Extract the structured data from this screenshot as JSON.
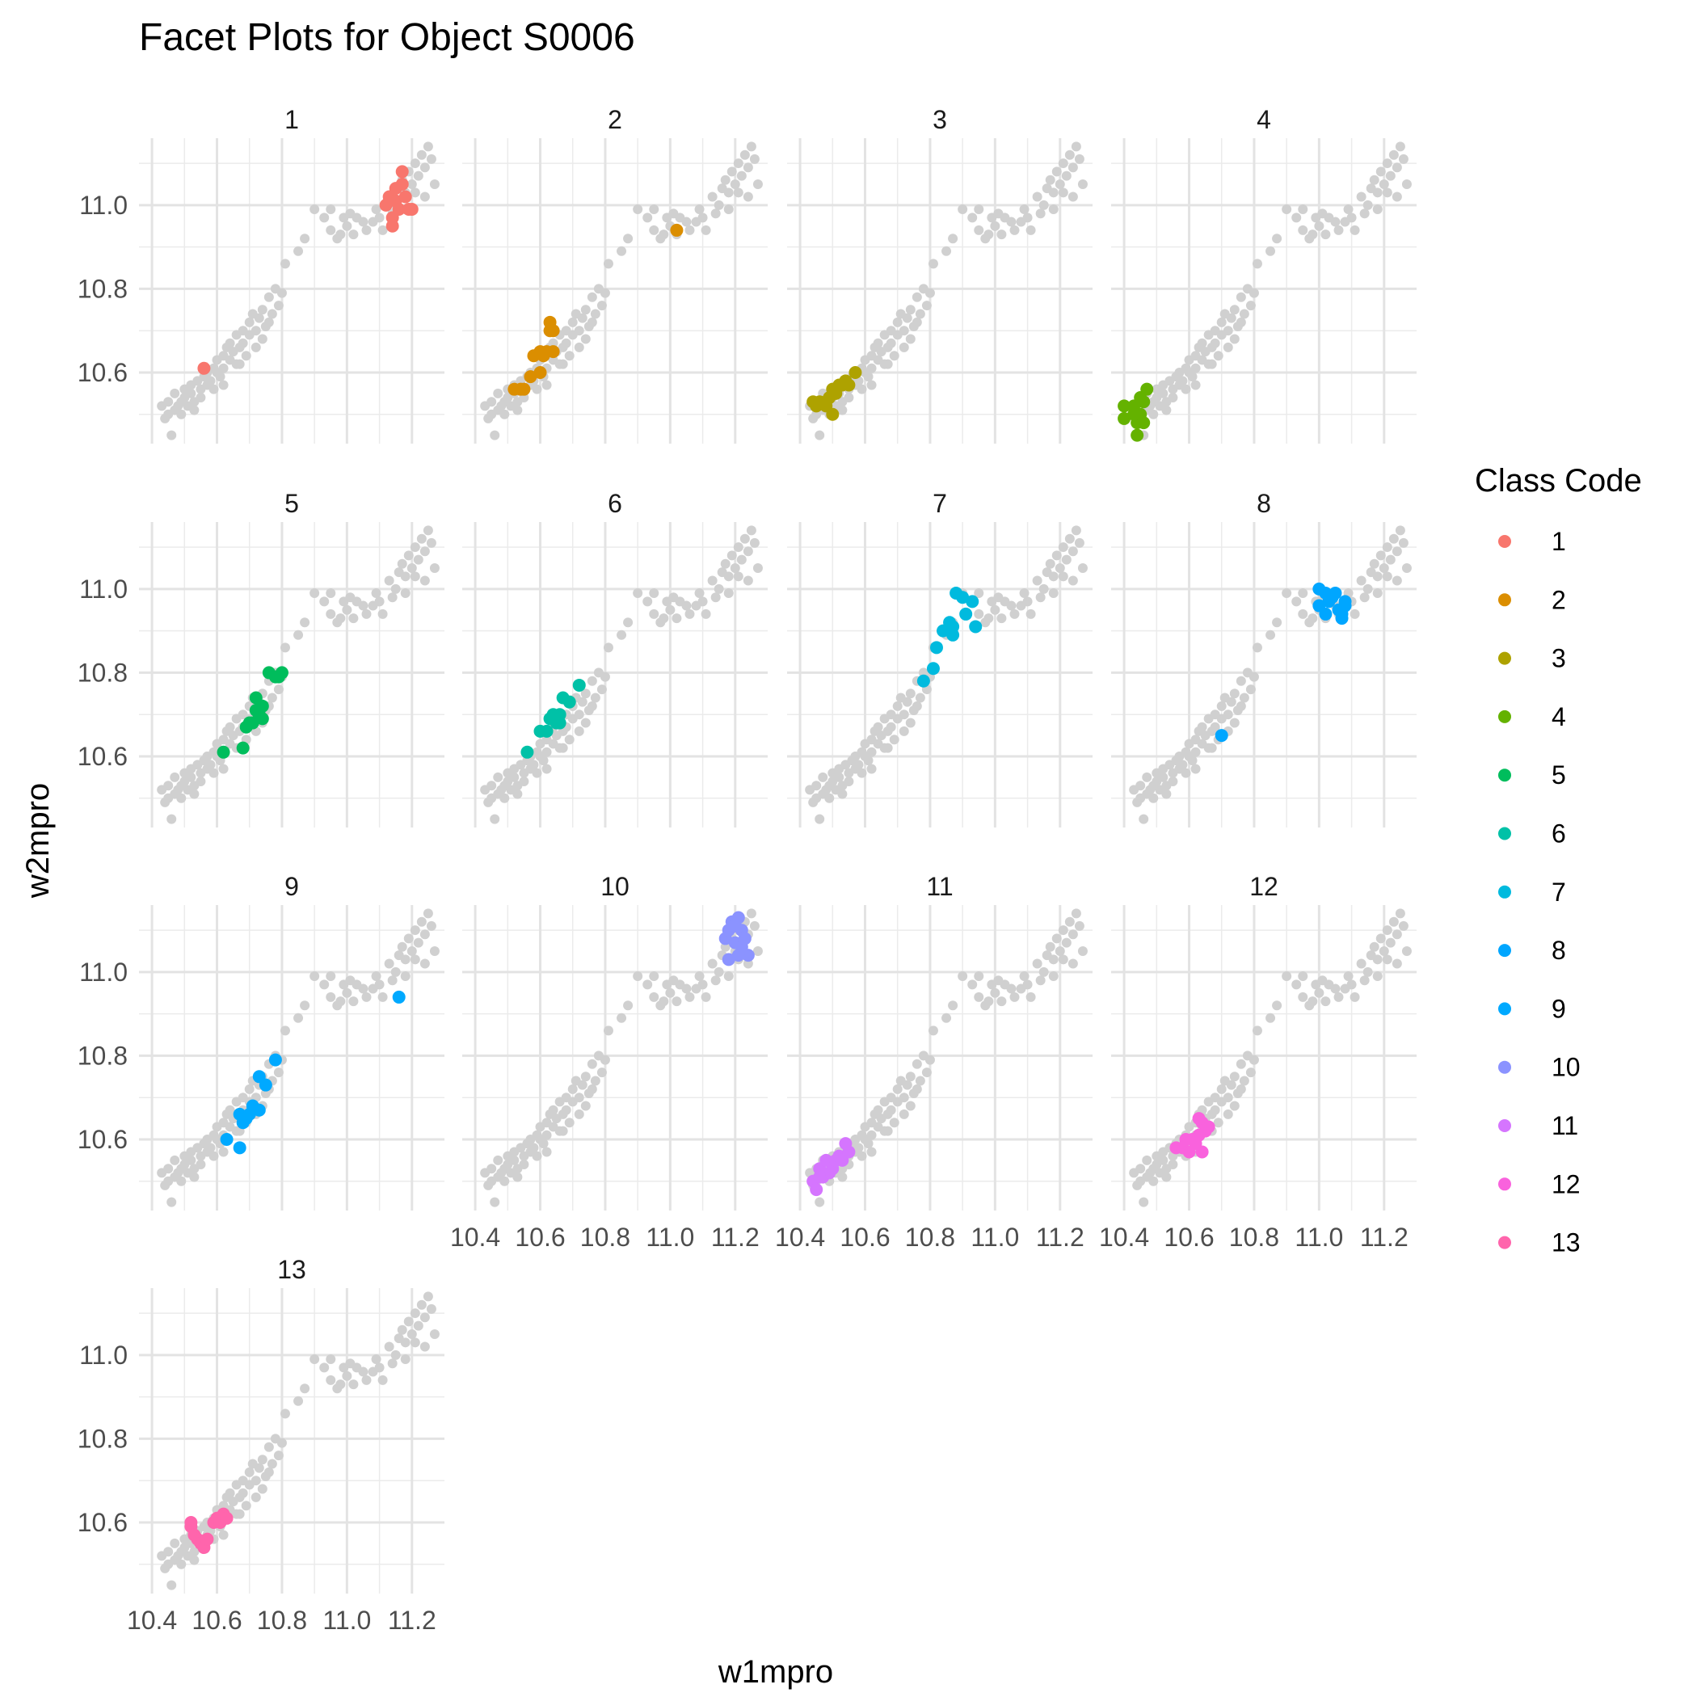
{
  "chart_data": {
    "type": "scatter",
    "title": "Facet Plots for Object S0006",
    "xlabel": "w1mpro",
    "ylabel": "w2mpro",
    "xlim": [
      10.36,
      11.3
    ],
    "ylim": [
      10.43,
      11.16
    ],
    "x_ticks": [
      "10.4",
      "10.6",
      "10.8",
      "11.0",
      "11.2"
    ],
    "x_tick_values": [
      10.4,
      10.6,
      10.8,
      11.0,
      11.2
    ],
    "y_ticks": [
      "10.6",
      "10.8",
      "11.0"
    ],
    "y_tick_values": [
      10.6,
      10.8,
      11.0
    ],
    "grid": true,
    "background_color": "#d0d0d0",
    "legend": {
      "title": "Class Code",
      "placement": "right",
      "entries": [
        "1",
        "2",
        "3",
        "4",
        "5",
        "6",
        "7",
        "8",
        "9",
        "10",
        "11",
        "12",
        "13"
      ]
    },
    "facets": [
      {
        "label": "1",
        "color": "#F8766D",
        "points": [
          [
            10.56,
            10.61
          ],
          [
            11.12,
            11.0
          ],
          [
            11.13,
            11.02
          ],
          [
            11.14,
            10.95
          ],
          [
            11.14,
            10.97
          ],
          [
            11.15,
            11.01
          ],
          [
            11.15,
            11.04
          ],
          [
            11.16,
            10.99
          ],
          [
            11.17,
            11.05
          ],
          [
            11.17,
            11.08
          ],
          [
            11.18,
            11.02
          ],
          [
            11.19,
            10.99
          ],
          [
            11.2,
            10.99
          ],
          [
            11.13,
            11.01
          ]
        ]
      },
      {
        "label": "2",
        "color": "#DB8E00",
        "points": [
          [
            10.52,
            10.56
          ],
          [
            10.54,
            10.56
          ],
          [
            10.55,
            10.56
          ],
          [
            10.57,
            10.59
          ],
          [
            10.58,
            10.64
          ],
          [
            10.6,
            10.6
          ],
          [
            10.6,
            10.65
          ],
          [
            10.61,
            10.64
          ],
          [
            10.62,
            10.65
          ],
          [
            10.63,
            10.7
          ],
          [
            10.63,
            10.72
          ],
          [
            10.64,
            10.65
          ],
          [
            10.64,
            10.7
          ],
          [
            11.02,
            10.94
          ]
        ]
      },
      {
        "label": "3",
        "color": "#AEA200",
        "points": [
          [
            10.44,
            10.53
          ],
          [
            10.45,
            10.52
          ],
          [
            10.46,
            10.53
          ],
          [
            10.48,
            10.52
          ],
          [
            10.49,
            10.54
          ],
          [
            10.5,
            10.5
          ],
          [
            10.51,
            10.55
          ],
          [
            10.52,
            10.57
          ],
          [
            10.53,
            10.57
          ],
          [
            10.54,
            10.58
          ],
          [
            10.55,
            10.57
          ],
          [
            10.57,
            10.6
          ],
          [
            10.5,
            10.56
          ]
        ]
      },
      {
        "label": "4",
        "color": "#64B200",
        "points": [
          [
            10.4,
            10.52
          ],
          [
            10.4,
            10.49
          ],
          [
            10.43,
            10.52
          ],
          [
            10.44,
            10.45
          ],
          [
            10.44,
            10.48
          ],
          [
            10.45,
            10.5
          ],
          [
            10.45,
            10.54
          ],
          [
            10.46,
            10.53
          ],
          [
            10.47,
            10.56
          ],
          [
            10.46,
            10.48
          ],
          [
            10.43,
            10.5
          ]
        ]
      },
      {
        "label": "5",
        "color": "#00BD5C",
        "points": [
          [
            10.62,
            10.61
          ],
          [
            10.68,
            10.62
          ],
          [
            10.69,
            10.67
          ],
          [
            10.7,
            10.68
          ],
          [
            10.71,
            10.68
          ],
          [
            10.72,
            10.74
          ],
          [
            10.72,
            10.71
          ],
          [
            10.73,
            10.7
          ],
          [
            10.74,
            10.72
          ],
          [
            10.74,
            10.69
          ],
          [
            10.76,
            10.8
          ],
          [
            10.78,
            10.79
          ],
          [
            10.79,
            10.79
          ],
          [
            10.8,
            10.8
          ]
        ]
      },
      {
        "label": "6",
        "color": "#00C1A7",
        "points": [
          [
            10.56,
            10.61
          ],
          [
            10.6,
            10.66
          ],
          [
            10.62,
            10.66
          ],
          [
            10.63,
            10.69
          ],
          [
            10.64,
            10.7
          ],
          [
            10.65,
            10.68
          ],
          [
            10.66,
            10.7
          ],
          [
            10.66,
            10.68
          ],
          [
            10.67,
            10.74
          ],
          [
            10.69,
            10.73
          ],
          [
            10.72,
            10.77
          ],
          [
            10.64,
            10.69
          ]
        ]
      },
      {
        "label": "7",
        "color": "#00BADE",
        "points": [
          [
            10.78,
            10.78
          ],
          [
            10.81,
            10.81
          ],
          [
            10.82,
            10.86
          ],
          [
            10.84,
            10.9
          ],
          [
            10.86,
            10.92
          ],
          [
            10.87,
            10.89
          ],
          [
            10.87,
            10.91
          ],
          [
            10.88,
            10.99
          ],
          [
            10.9,
            10.98
          ],
          [
            10.91,
            10.94
          ],
          [
            10.93,
            10.97
          ],
          [
            10.94,
            10.91
          ]
        ]
      },
      {
        "label": "8",
        "color": "#00A6FF",
        "points": [
          [
            10.7,
            10.65
          ],
          [
            11.0,
            11.0
          ],
          [
            11.0,
            10.96
          ],
          [
            11.02,
            10.94
          ],
          [
            11.03,
            10.97
          ],
          [
            11.04,
            10.98
          ],
          [
            11.05,
            10.99
          ],
          [
            11.06,
            10.95
          ],
          [
            11.07,
            10.94
          ],
          [
            11.08,
            10.96
          ],
          [
            11.08,
            10.97
          ],
          [
            11.07,
            10.93
          ],
          [
            11.02,
            10.99
          ]
        ]
      },
      {
        "label": "9",
        "color": "#00A9FF",
        "points": [
          [
            10.63,
            10.6
          ],
          [
            10.67,
            10.58
          ],
          [
            10.67,
            10.66
          ],
          [
            10.68,
            10.64
          ],
          [
            10.69,
            10.65
          ],
          [
            10.71,
            10.68
          ],
          [
            10.73,
            10.67
          ],
          [
            10.73,
            10.75
          ],
          [
            10.75,
            10.73
          ],
          [
            10.78,
            10.79
          ],
          [
            11.16,
            10.94
          ],
          [
            10.7,
            10.66
          ]
        ]
      },
      {
        "label": "10",
        "color": "#8B93FF",
        "points": [
          [
            11.17,
            11.08
          ],
          [
            11.18,
            11.1
          ],
          [
            11.18,
            11.03
          ],
          [
            11.19,
            11.12
          ],
          [
            11.2,
            11.07
          ],
          [
            11.21,
            11.13
          ],
          [
            11.22,
            11.1
          ],
          [
            11.22,
            11.06
          ],
          [
            11.23,
            11.08
          ],
          [
            11.24,
            11.04
          ],
          [
            11.21,
            11.04
          ],
          [
            11.2,
            11.11
          ]
        ]
      },
      {
        "label": "11",
        "color": "#D575FE",
        "points": [
          [
            10.44,
            10.5
          ],
          [
            10.45,
            10.48
          ],
          [
            10.46,
            10.53
          ],
          [
            10.47,
            10.51
          ],
          [
            10.48,
            10.55
          ],
          [
            10.49,
            10.52
          ],
          [
            10.5,
            10.53
          ],
          [
            10.51,
            10.55
          ],
          [
            10.52,
            10.56
          ],
          [
            10.53,
            10.55
          ],
          [
            10.54,
            10.59
          ],
          [
            10.55,
            10.57
          ],
          [
            10.46,
            10.51
          ]
        ]
      },
      {
        "label": "12",
        "color": "#F962DD",
        "points": [
          [
            10.56,
            10.58
          ],
          [
            10.58,
            10.58
          ],
          [
            10.59,
            10.6
          ],
          [
            10.6,
            10.57
          ],
          [
            10.61,
            10.6
          ],
          [
            10.62,
            10.59
          ],
          [
            10.63,
            10.61
          ],
          [
            10.64,
            10.64
          ],
          [
            10.65,
            10.62
          ],
          [
            10.66,
            10.63
          ],
          [
            10.64,
            10.57
          ],
          [
            10.63,
            10.65
          ]
        ]
      },
      {
        "label": "13",
        "color": "#FF65AC",
        "points": [
          [
            10.52,
            10.59
          ],
          [
            10.53,
            10.57
          ],
          [
            10.54,
            10.56
          ],
          [
            10.55,
            10.55
          ],
          [
            10.56,
            10.54
          ],
          [
            10.57,
            10.56
          ],
          [
            10.59,
            10.6
          ],
          [
            10.6,
            10.61
          ],
          [
            10.61,
            10.6
          ],
          [
            10.62,
            10.62
          ],
          [
            10.63,
            10.61
          ],
          [
            10.52,
            10.6
          ]
        ]
      }
    ],
    "background_points": [
      [
        10.43,
        10.52
      ],
      [
        10.44,
        10.49
      ],
      [
        10.45,
        10.5
      ],
      [
        10.45,
        10.53
      ],
      [
        10.46,
        10.45
      ],
      [
        10.47,
        10.51
      ],
      [
        10.47,
        10.55
      ],
      [
        10.48,
        10.52
      ],
      [
        10.49,
        10.5
      ],
      [
        10.49,
        10.53
      ],
      [
        10.5,
        10.56
      ],
      [
        10.5,
        10.54
      ],
      [
        10.51,
        10.52
      ],
      [
        10.52,
        10.55
      ],
      [
        10.52,
        10.57
      ],
      [
        10.53,
        10.53
      ],
      [
        10.54,
        10.58
      ],
      [
        10.55,
        10.56
      ],
      [
        10.55,
        10.54
      ],
      [
        10.56,
        10.59
      ],
      [
        10.57,
        10.57
      ],
      [
        10.57,
        10.6
      ],
      [
        10.58,
        10.58
      ],
      [
        10.59,
        10.61
      ],
      [
        10.6,
        10.6
      ],
      [
        10.6,
        10.63
      ],
      [
        10.61,
        10.59
      ],
      [
        10.62,
        10.64
      ],
      [
        10.62,
        10.61
      ],
      [
        10.63,
        10.66
      ],
      [
        10.64,
        10.63
      ],
      [
        10.64,
        10.67
      ],
      [
        10.65,
        10.65
      ],
      [
        10.66,
        10.62
      ],
      [
        10.66,
        10.69
      ],
      [
        10.67,
        10.66
      ],
      [
        10.68,
        10.7
      ],
      [
        10.68,
        10.67
      ],
      [
        10.69,
        10.64
      ],
      [
        10.7,
        10.72
      ],
      [
        10.7,
        10.69
      ],
      [
        10.71,
        10.74
      ],
      [
        10.72,
        10.7
      ],
      [
        10.73,
        10.73
      ],
      [
        10.74,
        10.68
      ],
      [
        10.74,
        10.75
      ],
      [
        10.75,
        10.71
      ],
      [
        10.76,
        10.78
      ],
      [
        10.77,
        10.74
      ],
      [
        10.78,
        10.8
      ],
      [
        10.79,
        10.76
      ],
      [
        10.8,
        10.79
      ],
      [
        10.81,
        10.86
      ],
      [
        10.85,
        10.89
      ],
      [
        10.87,
        10.92
      ],
      [
        10.9,
        10.99
      ],
      [
        10.93,
        10.97
      ],
      [
        10.95,
        10.94
      ],
      [
        10.97,
        10.92
      ],
      [
        10.99,
        10.97
      ],
      [
        11.0,
        10.95
      ],
      [
        11.01,
        10.98
      ],
      [
        11.02,
        10.93
      ],
      [
        11.03,
        10.97
      ],
      [
        11.05,
        10.96
      ],
      [
        11.06,
        10.94
      ],
      [
        11.08,
        10.96
      ],
      [
        11.09,
        10.99
      ],
      [
        11.1,
        10.97
      ],
      [
        11.11,
        10.94
      ],
      [
        11.13,
        11.02
      ],
      [
        11.14,
        10.98
      ],
      [
        11.15,
        11.0
      ],
      [
        11.16,
        11.04
      ],
      [
        11.17,
        11.06
      ],
      [
        11.18,
        11.03
      ],
      [
        11.19,
        11.08
      ],
      [
        11.2,
        11.05
      ],
      [
        11.21,
        11.1
      ],
      [
        11.22,
        11.07
      ],
      [
        11.23,
        11.12
      ],
      [
        11.24,
        11.09
      ],
      [
        11.25,
        11.14
      ],
      [
        11.26,
        11.11
      ],
      [
        11.27,
        11.05
      ],
      [
        11.24,
        11.02
      ],
      [
        11.21,
        11.03
      ],
      [
        11.18,
        10.99
      ],
      [
        10.95,
        10.99
      ],
      [
        10.98,
        10.93
      ],
      [
        10.62,
        10.57
      ],
      [
        10.59,
        10.56
      ],
      [
        10.53,
        10.51
      ],
      [
        10.67,
        10.62
      ],
      [
        10.72,
        10.66
      ],
      [
        10.76,
        10.72
      ]
    ]
  }
}
